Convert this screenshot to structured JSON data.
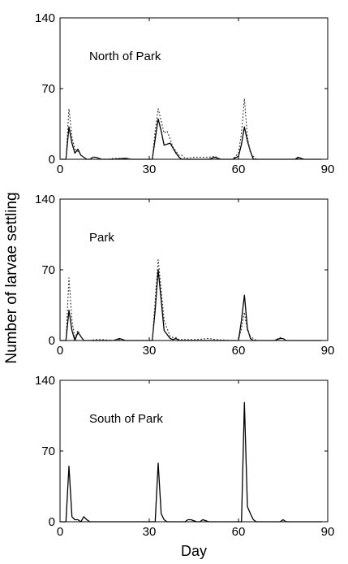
{
  "figure": {
    "ylabel": "Number of larvae settling",
    "xlabel": "Day"
  },
  "chart_data": [
    {
      "type": "line",
      "title": "North of Park",
      "xlim": [
        0,
        90
      ],
      "ylim": [
        0,
        140
      ],
      "xticks": [
        "0",
        "30",
        "60",
        "90"
      ],
      "yticks": [
        "0",
        "70",
        "140"
      ],
      "grid": false,
      "series": [
        {
          "style": "solid",
          "x": [
            0,
            1,
            2,
            3,
            4,
            5,
            6,
            7,
            8,
            9,
            10,
            11,
            12,
            14,
            16,
            18,
            22,
            24,
            29,
            31,
            32,
            33,
            34,
            35,
            36,
            37,
            38,
            39,
            40,
            41,
            42,
            45,
            48,
            50,
            52,
            54,
            58,
            60,
            61,
            62,
            63,
            64,
            65,
            66,
            67,
            70,
            79,
            80,
            82,
            88
          ],
          "y": [
            0,
            0,
            0,
            32,
            16,
            6,
            10,
            4,
            2,
            0,
            0,
            2,
            2,
            0,
            0,
            0,
            1,
            0,
            0,
            0,
            20,
            40,
            28,
            14,
            15,
            16,
            11,
            6,
            2,
            0,
            0,
            0,
            0,
            0,
            2,
            0,
            0,
            3,
            15,
            32,
            18,
            8,
            0,
            0,
            0,
            0,
            0,
            2,
            0,
            0
          ]
        },
        {
          "style": "dotted",
          "x": [
            0,
            1,
            2,
            3,
            4,
            5,
            6,
            7,
            8,
            9,
            10,
            11,
            12,
            14,
            16,
            18,
            22,
            24,
            29,
            31,
            32,
            33,
            34,
            35,
            36,
            37,
            38,
            39,
            40,
            41,
            42,
            45,
            48,
            50,
            52,
            54,
            58,
            60,
            61,
            62,
            63,
            64,
            65,
            66,
            67,
            70,
            79,
            80,
            82,
            88
          ],
          "y": [
            0,
            0,
            0,
            50,
            22,
            10,
            8,
            4,
            2,
            0,
            0,
            2,
            2,
            0,
            0,
            1,
            1,
            0,
            0,
            0,
            28,
            50,
            38,
            26,
            28,
            20,
            12,
            8,
            4,
            4,
            1,
            2,
            2,
            2,
            3,
            0,
            0,
            6,
            26,
            60,
            22,
            6,
            3,
            0,
            0,
            0,
            0,
            1,
            0,
            0
          ]
        }
      ]
    },
    {
      "type": "line",
      "title": "Park",
      "xlim": [
        0,
        90
      ],
      "ylim": [
        0,
        140
      ],
      "xticks": [
        "0",
        "30",
        "60",
        "90"
      ],
      "yticks": [
        "0",
        "70",
        "140"
      ],
      "grid": false,
      "series": [
        {
          "style": "solid",
          "x": [
            0,
            1,
            2,
            3,
            4,
            5,
            6,
            7,
            8,
            9,
            10,
            12,
            14,
            18,
            20,
            22,
            26,
            28,
            31,
            32,
            33,
            34,
            35,
            36,
            37,
            38,
            39,
            40,
            42,
            46,
            50,
            52,
            58,
            60,
            61,
            62,
            63,
            64,
            65,
            66,
            70,
            72,
            74,
            75,
            76,
            80,
            85,
            88
          ],
          "y": [
            0,
            0,
            0,
            30,
            10,
            0,
            8,
            4,
            0,
            0,
            0,
            0,
            0,
            0,
            2,
            0,
            0,
            0,
            0,
            30,
            70,
            40,
            10,
            6,
            2,
            1,
            2,
            0,
            0,
            0,
            0,
            0,
            0,
            0,
            20,
            45,
            12,
            2,
            0,
            0,
            0,
            0,
            2,
            2,
            0,
            0,
            0,
            0
          ]
        },
        {
          "style": "dotted",
          "x": [
            0,
            1,
            2,
            3,
            4,
            5,
            6,
            7,
            8,
            9,
            10,
            12,
            14,
            18,
            20,
            22,
            26,
            28,
            31,
            32,
            33,
            34,
            35,
            36,
            37,
            38,
            39,
            40,
            42,
            46,
            50,
            52,
            58,
            60,
            61,
            62,
            63,
            64,
            65,
            66,
            70,
            72,
            74,
            75,
            76,
            80,
            85,
            88
          ],
          "y": [
            0,
            0,
            0,
            62,
            20,
            2,
            10,
            4,
            0,
            0,
            0,
            1,
            1,
            0,
            1,
            0,
            0,
            0,
            0,
            40,
            80,
            50,
            20,
            12,
            4,
            3,
            3,
            1,
            1,
            1,
            2,
            1,
            0,
            0,
            12,
            28,
            10,
            4,
            2,
            0,
            0,
            0,
            3,
            2,
            0,
            0,
            0,
            0
          ]
        }
      ]
    },
    {
      "type": "line",
      "title": "South of Park",
      "xlim": [
        0,
        90
      ],
      "ylim": [
        0,
        140
      ],
      "xticks": [
        "0",
        "30",
        "60",
        "90"
      ],
      "yticks": [
        "0",
        "70",
        "140"
      ],
      "grid": false,
      "series": [
        {
          "style": "solid",
          "x": [
            0,
            1,
            2,
            3,
            4,
            5,
            6,
            7,
            8,
            9,
            10,
            12,
            16,
            20,
            26,
            30,
            31,
            32,
            33,
            34,
            35,
            36,
            40,
            42,
            43,
            44,
            46,
            47,
            48,
            50,
            58,
            60,
            61,
            62,
            63,
            64,
            65,
            66,
            67,
            70,
            72,
            74,
            75,
            76,
            80,
            88
          ],
          "y": [
            0,
            0,
            0,
            55,
            5,
            2,
            2,
            0,
            5,
            2,
            0,
            0,
            0,
            0,
            0,
            0,
            0,
            0,
            58,
            8,
            2,
            0,
            0,
            0,
            2,
            2,
            0,
            0,
            2,
            0,
            0,
            0,
            0,
            118,
            15,
            8,
            2,
            0,
            0,
            0,
            0,
            0,
            2,
            0,
            0,
            0
          ]
        }
      ]
    }
  ]
}
